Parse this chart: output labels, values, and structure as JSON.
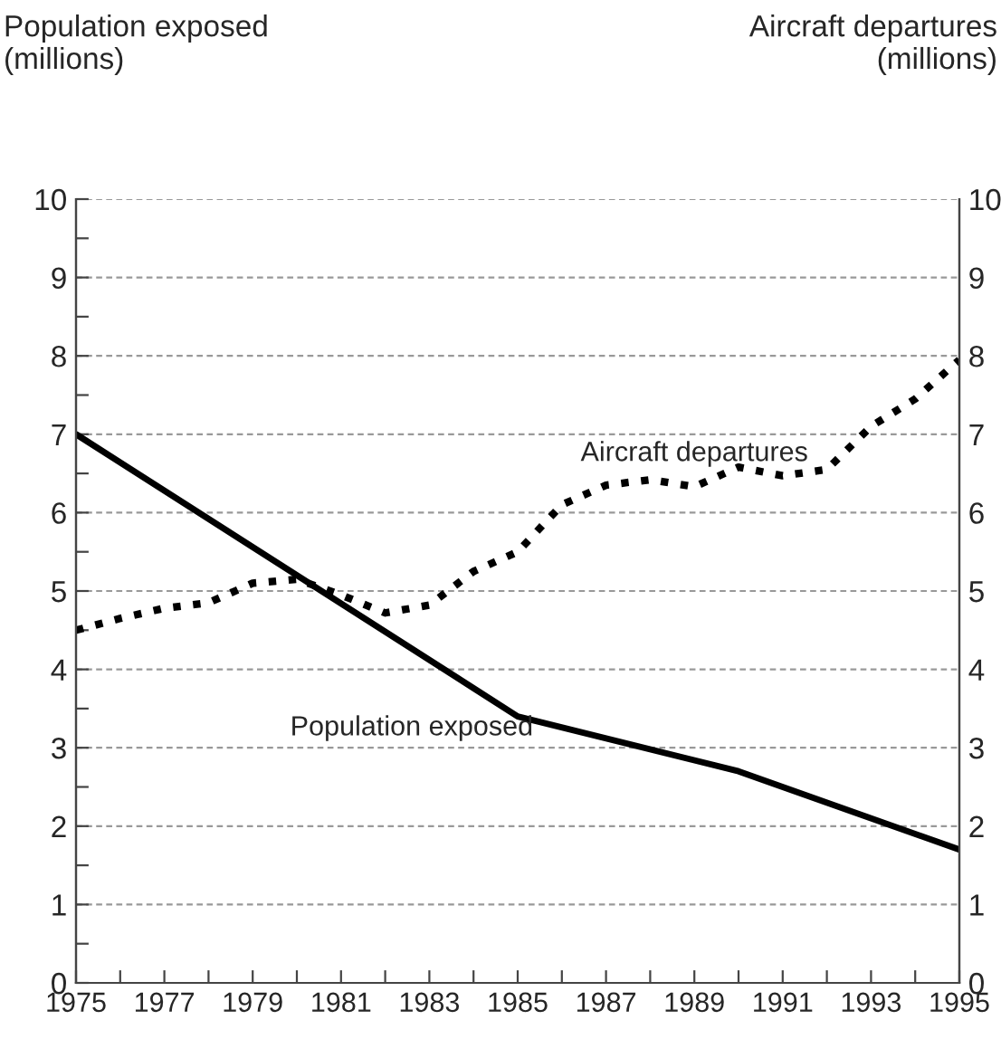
{
  "chart_data": {
    "type": "line",
    "ylabel": "Population exposed\n(millions)",
    "y2label": "Aircraft departures\n(millions)",
    "x": [
      1975,
      1976,
      1977,
      1978,
      1979,
      1980,
      1981,
      1982,
      1983,
      1984,
      1985,
      1986,
      1987,
      1988,
      1989,
      1990,
      1991,
      1992,
      1993,
      1994,
      1995
    ],
    "series": [
      {
        "color": "#000000",
        "line_style": "solid",
        "x": [
          1975,
          1985,
          1990,
          1995
        ],
        "values": [
          7.0,
          3.4,
          2.7,
          1.7
        ]
      },
      {
        "color": "#000000",
        "line_style": "dotted",
        "axis": "y2",
        "values": [
          4.5,
          4.65,
          4.78,
          4.85,
          5.1,
          5.15,
          4.95,
          4.72,
          4.82,
          5.25,
          5.5,
          6.1,
          6.35,
          6.42,
          6.33,
          6.58,
          6.47,
          6.55,
          7.1,
          7.45,
          7.95
        ]
      }
    ],
    "annotations": [
      "Population exposed",
      "Aircraft departures"
    ],
    "xlim": [
      1975,
      1995
    ],
    "xticks": [
      1975,
      {
        "value": 1976,
        "label": null
      },
      1977,
      {
        "value": 1978,
        "label": null
      },
      1979,
      {
        "value": 1980,
        "label": null
      },
      1981,
      {
        "value": 1982,
        "label": null
      },
      1983,
      {
        "value": 1984,
        "label": null
      },
      1985,
      {
        "value": 1986,
        "label": null
      },
      1987,
      {
        "value": 1988,
        "label": null
      },
      1989,
      {
        "value": 1990,
        "label": null
      },
      1991,
      {
        "value": 1992,
        "label": null
      },
      1993,
      {
        "value": 1994,
        "label": null
      },
      1995
    ],
    "ylim": [
      0,
      10
    ],
    "yticks": [
      0,
      {
        "value": 0.5,
        "label": null
      },
      1,
      {
        "value": 1.5,
        "label": null
      },
      2,
      {
        "value": 2.5,
        "label": null
      },
      3,
      {
        "value": 3.5,
        "label": null
      },
      4,
      {
        "value": 4.5,
        "label": null
      },
      5,
      {
        "value": 5.5,
        "label": null
      },
      6,
      {
        "value": 6.5,
        "label": null
      },
      7,
      {
        "value": 7.5,
        "label": null
      },
      8,
      {
        "value": 8.5,
        "label": null
      },
      9,
      {
        "value": 9.5,
        "label": null
      },
      10
    ],
    "y2lim": [
      0,
      10
    ],
    "y2ticks": [
      0,
      1,
      2,
      3,
      4,
      5,
      6,
      7,
      8,
      9,
      10
    ],
    "grid": "y",
    "legend": false,
    "marker": "none"
  }
}
